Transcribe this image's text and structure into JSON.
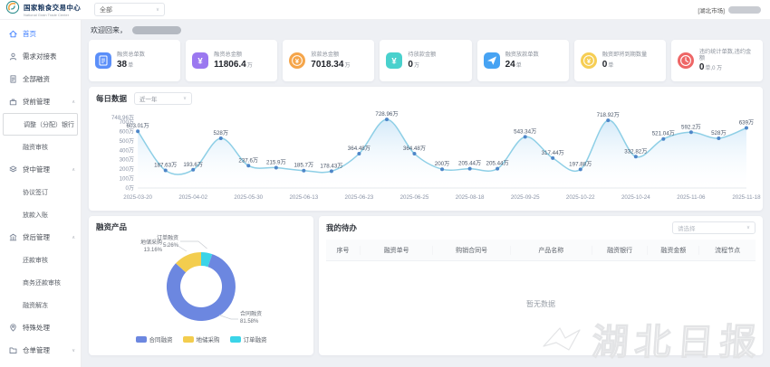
{
  "header": {
    "logo_title": "国家粮食交易中心",
    "logo_subtitle": "National Grain Trade Center",
    "market_select": "全部",
    "user_market": "[湖北市场]"
  },
  "sidebar": {
    "items": [
      {
        "key": "home",
        "label": "首页",
        "icon": "home",
        "active": true
      },
      {
        "key": "demand-table",
        "label": "需求对接表",
        "icon": "user"
      },
      {
        "key": "all-financing",
        "label": "全部融资",
        "icon": "doc"
      },
      {
        "key": "pre-loan",
        "label": "贷前管理",
        "icon": "briefcase",
        "chevron": "up"
      },
      {
        "key": "adjust-bank",
        "label": "调整（分配）银行",
        "sub": true,
        "boxed": true
      },
      {
        "key": "financing-review",
        "label": "融资审核",
        "sub": true
      },
      {
        "key": "in-loan",
        "label": "贷中管理",
        "icon": "layers",
        "chevron": "up"
      },
      {
        "key": "agreement-sign",
        "label": "协议签订",
        "sub": true
      },
      {
        "key": "loan-entry",
        "label": "放款入账",
        "sub": true
      },
      {
        "key": "post-loan",
        "label": "贷后管理",
        "icon": "bank",
        "chevron": "up"
      },
      {
        "key": "repay-review",
        "label": "还款审核",
        "sub": true
      },
      {
        "key": "business-repay-review",
        "label": "商务还款审核",
        "sub": true
      },
      {
        "key": "financing-unfreeze",
        "label": "融资解冻",
        "sub": true
      },
      {
        "key": "special-handling",
        "label": "特殊处理",
        "icon": "pin"
      },
      {
        "key": "warehouse-receipt",
        "label": "仓单管理",
        "icon": "folder",
        "chevron": "down"
      }
    ]
  },
  "greeting": {
    "text": "欢迎回来，"
  },
  "stats": [
    {
      "title": "融资总单数",
      "value": "38",
      "unit": "单",
      "icon": "doc-icon",
      "shape": "square",
      "color": "#5b8ff9"
    },
    {
      "title": "融资总金额",
      "value": "11806.4",
      "unit": "万",
      "icon": "yen-icon",
      "shape": "square",
      "color": "#9b78f0"
    },
    {
      "title": "放款总金额",
      "value": "7018.34",
      "unit": "万",
      "icon": "coin-icon",
      "shape": "circle",
      "color": "#f5a54a"
    },
    {
      "title": "待放款金额",
      "value": "0",
      "unit": "万",
      "icon": "yen-icon",
      "shape": "square",
      "color": "#49d1cd"
    },
    {
      "title": "融资放款单数",
      "value": "24",
      "unit": "单",
      "icon": "send-icon",
      "shape": "square",
      "color": "#47a3f3"
    },
    {
      "title": "融资即将到期数量",
      "value": "0",
      "unit": "单",
      "icon": "coin-icon",
      "shape": "circle",
      "color": "#f6ce54"
    },
    {
      "title": "违约统计单数,违约金额",
      "value": "0",
      "unit": "单,0 万",
      "icon": "clock-icon",
      "shape": "circle",
      "color": "#ee6666"
    }
  ],
  "chart_data": [
    {
      "type": "line",
      "title": "每日数据",
      "filter": "近一年",
      "values": [
        603.01,
        187.63,
        193.6,
        528,
        237.6,
        215.9,
        185.7,
        178.43,
        364.48,
        728.96,
        364.48,
        200,
        205.44,
        205.44,
        543.34,
        317.44,
        197.88,
        718.92,
        332.82,
        521.04,
        592.2,
        528,
        639
      ],
      "point_labels": [
        "603.01万",
        "187.63万",
        "193.6万",
        "528万",
        "237.6万",
        "215.9万",
        "185.7万",
        "178.43万",
        "364.48万",
        "728.96万",
        "364.48万",
        "200万",
        "205.44万",
        "205.44万",
        "543.34万",
        "317.44万",
        "197.88万",
        "718.92万",
        "332.82万",
        "521.04万",
        "592.2万",
        "528万",
        "639万"
      ],
      "x_tick_labels": [
        "2025-03-20",
        "2025-04-02",
        "2025-05-30",
        "2025-06-13",
        "2025-06-23",
        "2025-06-25",
        "2025-08-18",
        "2025-09-25",
        "2025-10-22",
        "2025-10-24",
        "2025-11-06",
        "2025-11-18"
      ],
      "x_tick_indices": [
        0,
        2,
        4,
        6,
        8,
        10,
        12,
        14,
        16,
        18,
        20,
        22
      ],
      "y_ticks": [
        "0万",
        "100万",
        "200万",
        "300万",
        "400万",
        "500万",
        "600万",
        "700万",
        "748.96万"
      ],
      "y_tick_values": [
        0,
        100,
        200,
        300,
        400,
        500,
        600,
        700,
        748.96
      ],
      "ylim": [
        0,
        748.96
      ],
      "line_color": "#8ecfe6",
      "dot_color": "#4e86c8",
      "area_color": "rgba(152,204,240,0.42)"
    },
    {
      "type": "pie",
      "title": "融资产品",
      "slices": [
        {
          "name": "合同融资",
          "pct": 81.58,
          "pct_label": "81.58%",
          "color": "#6c87e0"
        },
        {
          "name": "地储采购",
          "pct": 13.16,
          "pct_label": "13.16%",
          "color": "#f3cd4e"
        },
        {
          "name": "订单融资",
          "pct": 5.26,
          "pct_label": "5.26%",
          "color": "#3bd4e8"
        }
      ]
    }
  ],
  "todo": {
    "title": "我的待办",
    "select_placeholder": "请选择",
    "columns": [
      "序号",
      "融资单号",
      "购销合同号",
      "产品名称",
      "融资银行",
      "融资金额",
      "流程节点"
    ],
    "empty_text": "暂无数据"
  },
  "watermark": {
    "text": "湖北日报"
  }
}
